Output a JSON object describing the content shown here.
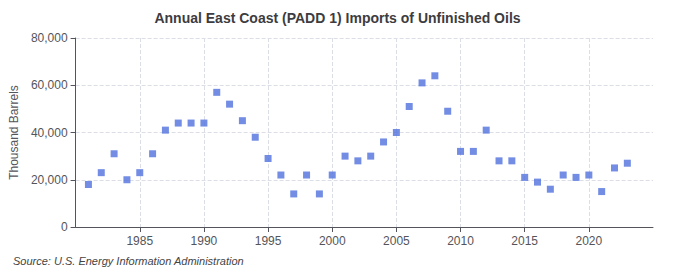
{
  "chart_data": {
    "type": "scatter",
    "title": "Annual East Coast (PADD 1) Imports of Unfinished Oils",
    "ylabel": "Thousand Barrels",
    "annotations": [
      "Source: U.S. Energy Information Administration"
    ],
    "x": [
      1981,
      1982,
      1983,
      1984,
      1985,
      1986,
      1987,
      1988,
      1989,
      1990,
      1991,
      1992,
      1993,
      1994,
      1995,
      1996,
      1997,
      1998,
      1999,
      2000,
      2001,
      2002,
      2003,
      2004,
      2005,
      2006,
      2007,
      2008,
      2009,
      2010,
      2011,
      2012,
      2013,
      2014,
      2015,
      2016,
      2017,
      2018,
      2019,
      2020,
      2021,
      2022,
      2023
    ],
    "values": [
      18000,
      23000,
      31000,
      20000,
      23000,
      31000,
      41000,
      44000,
      44000,
      44000,
      57000,
      52000,
      45000,
      38000,
      29000,
      22000,
      14000,
      22000,
      14000,
      22000,
      30000,
      28000,
      30000,
      36000,
      40000,
      51000,
      61000,
      64000,
      49000,
      32000,
      32000,
      41000,
      28000,
      28000,
      21000,
      19000,
      16000,
      22000,
      21000,
      22000,
      15000,
      25000,
      27000
    ],
    "xlim": [
      1980,
      2025
    ],
    "xticks": [
      1985,
      1990,
      1995,
      2000,
      2005,
      2010,
      2015,
      2020
    ],
    "ylim": [
      0,
      80000
    ],
    "yticks": [
      0,
      {
        "value": 20000,
        "label": "20,000"
      },
      {
        "value": 40000,
        "label": "40,000"
      },
      {
        "value": 60000,
        "label": "60,000"
      },
      {
        "value": 80000,
        "label": "80,000"
      }
    ],
    "grid": true,
    "marker": "square"
  }
}
